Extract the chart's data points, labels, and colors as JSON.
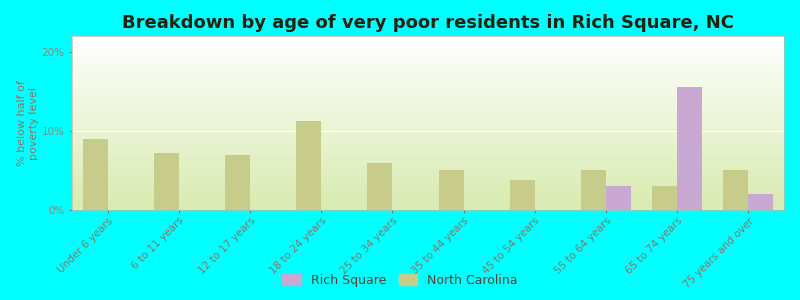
{
  "title": "Breakdown by age of very poor residents in Rich Square, NC",
  "ylabel": "% below half of\npoverty level",
  "categories": [
    "Under 6 years",
    "6 to 11 years",
    "12 to 17 years",
    "18 to 24 years",
    "25 to 34 years",
    "35 to 44 years",
    "45 to 54 years",
    "55 to 64 years",
    "65 to 74 years",
    "75 years and over"
  ],
  "rich_square": [
    0,
    0,
    0,
    0,
    0,
    0,
    0,
    3.0,
    15.5,
    2.0
  ],
  "north_carolina": [
    9.0,
    7.2,
    7.0,
    11.2,
    6.0,
    5.0,
    3.8,
    5.0,
    3.0,
    5.0
  ],
  "rich_square_color": "#c9a8d4",
  "north_carolina_color": "#c8cc8a",
  "background_color": "#00ffff",
  "ylim": [
    0,
    22
  ],
  "yticks": [
    0,
    10,
    20
  ],
  "ytick_labels": [
    "0%",
    "10%",
    "20%"
  ],
  "bar_width": 0.35,
  "title_fontsize": 13,
  "axis_label_fontsize": 8,
  "tick_fontsize": 7.5,
  "legend_fontsize": 9
}
